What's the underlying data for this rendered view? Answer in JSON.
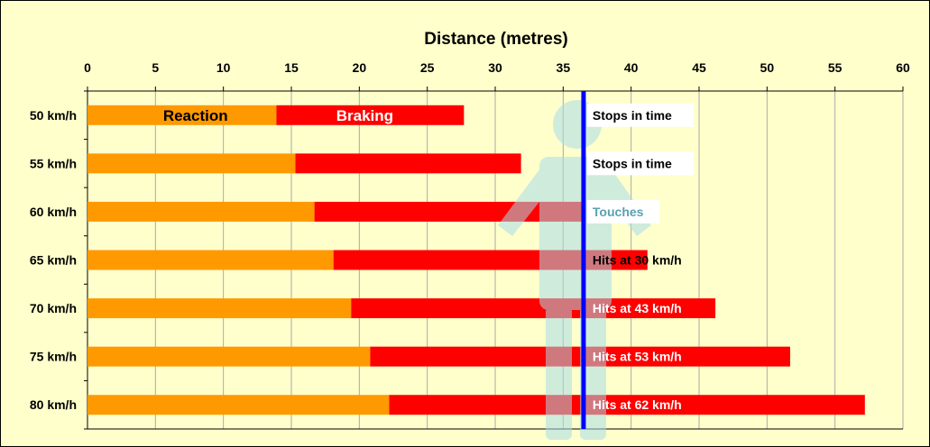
{
  "chart_data": {
    "type": "bar",
    "orientation": "horizontal",
    "stacked": true,
    "title": "Distance (metres)",
    "xlim": [
      0,
      60
    ],
    "x_ticks": [
      "0",
      "5",
      "10",
      "15",
      "20",
      "25",
      "30",
      "35",
      "40",
      "45",
      "50",
      "55",
      "60"
    ],
    "categories": [
      "50 km/h",
      "55 km/h",
      "60 km/h",
      "65 km/h",
      "70 km/h",
      "75 km/h",
      "80 km/h"
    ],
    "series": [
      {
        "name": "Reaction",
        "color": "#ff9900",
        "values": [
          13.9,
          15.3,
          16.7,
          18.1,
          19.4,
          20.8,
          22.2
        ]
      },
      {
        "name": "Braking",
        "color": "#ff0000",
        "values": [
          13.8,
          16.6,
          19.9,
          23.1,
          26.8,
          30.9,
          35.0
        ]
      }
    ],
    "in_bar_labels": {
      "reaction": "Reaction",
      "braking": "Braking"
    },
    "pedestrian_line": {
      "x": 36.5,
      "color": "#0000ff"
    },
    "annotations": [
      "Stops in time",
      "Stops in time",
      "Touches",
      "Hits at 30 km/h",
      "Hits at 43 km/h",
      "Hits at 53 km/h",
      "Hits at 62 km/h"
    ],
    "grid": "vertical",
    "background": "#ffffcc",
    "icon": "pedestrian-figure-icon"
  }
}
